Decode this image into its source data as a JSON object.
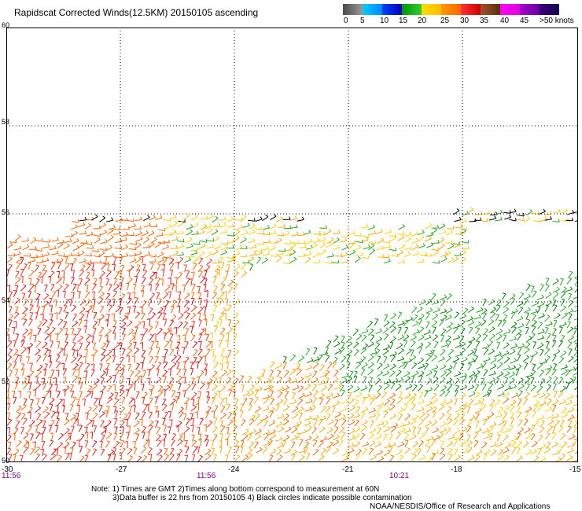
{
  "title": "Rapidscat Corrected Winds(12.5KM) 20150105 ascending",
  "legend": {
    "colors": [
      "#555555",
      "#999999",
      "#00bfff",
      "#0066ff",
      "#0000cc",
      "#00aa00",
      "#33cc33",
      "#ffd700",
      "#ffaa00",
      "#ff6600",
      "#ff2222",
      "#cc0000",
      "#8b4513",
      "#6b3510",
      "#ff00ff",
      "#cc00cc",
      "#9900cc",
      "#4b0082",
      "#220066",
      "#440088"
    ],
    "labels": [
      {
        "text": "0",
        "col": 0
      },
      {
        "text": "5",
        "col": 1
      },
      {
        "text": "10",
        "col": 2
      },
      {
        "text": "15",
        "col": 3
      },
      {
        "text": "20",
        "col": 4
      },
      {
        "text": "25",
        "col": 5
      },
      {
        "text": "30",
        "col": 6
      },
      {
        "text": "35",
        "col": 7
      },
      {
        "text": "40",
        "col": 8
      },
      {
        "text": "45",
        "col": 9
      },
      {
        "text": ">50 knots",
        "col": 10
      }
    ]
  },
  "map": {
    "lat_labels": [
      "60",
      "58",
      "56",
      "54",
      "52",
      "50"
    ],
    "lon_labels": [
      "-30",
      "-27",
      "-24",
      "-21",
      "-18",
      "-15"
    ],
    "time_labels": [
      "11:56",
      "11:56",
      "10:21"
    ]
  },
  "notes": {
    "line1": "Note: 1) Times are GMT 2)Times along bottom correspond to measurement at 60N",
    "line2": "3)Data buffer is 22 hrs from 20150105 4) Black circles indicate possible contamination",
    "line3": "NOAA/NESDIS/Office of Research and Applications"
  }
}
